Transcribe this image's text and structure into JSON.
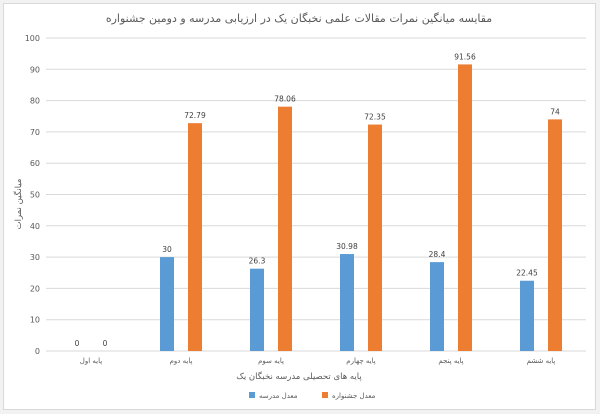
{
  "chart_data": {
    "type": "bar",
    "title": "مقایسه میانگین نمرات مقالات علمی نخبگان یک در ارزیابی مدرسه و دومین جشنواره",
    "xlabel": "پایه های تحصیلی مدرسه نخبگان یک",
    "ylabel": "میانگین نمرات",
    "ylim": [
      0,
      100
    ],
    "yticks": [
      0,
      10,
      20,
      30,
      40,
      50,
      60,
      70,
      80,
      90,
      100
    ],
    "grid": true,
    "legend_position": "bottom",
    "categories": [
      "پایه اول",
      "پایه دوم",
      "پایه سوم",
      "پایه چهارم",
      "پایه پنجم",
      "پایه ششم"
    ],
    "series": [
      {
        "name": "معدل مدرسه",
        "color": "#5b9bd5",
        "values": [
          0,
          30,
          26.3,
          30.98,
          28.4,
          22.45
        ],
        "labels": [
          "0",
          "30",
          "26.3",
          "30.98",
          "28.4",
          "22.45"
        ]
      },
      {
        "name": "معدل جشنواره",
        "color": "#ed7d31",
        "values": [
          0,
          72.79,
          78.06,
          72.35,
          91.56,
          74
        ],
        "labels": [
          "0",
          "72.79",
          "78.06",
          "72.35",
          "91.56",
          "74"
        ]
      }
    ]
  }
}
